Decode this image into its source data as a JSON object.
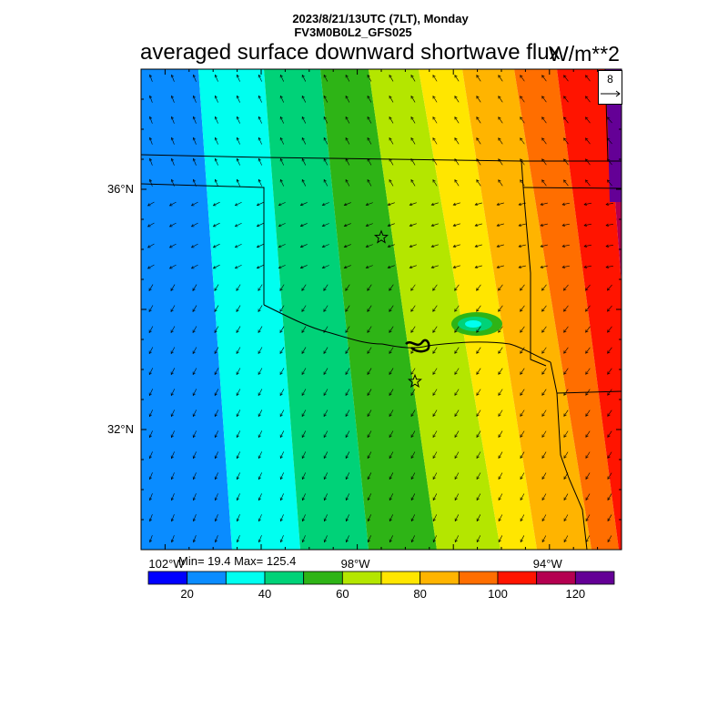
{
  "header": {
    "datetime": "2023/8/21/13UTC (7LT), Monday",
    "model": "FV3M0B0L2_GFS025",
    "title": "averaged surface downward shortwave flux",
    "units": "W/m**2"
  },
  "map": {
    "lon_range": [
      -102.5,
      -92.5
    ],
    "lat_range": [
      30,
      38
    ],
    "lat_ticks": [
      {
        "label": "36°N",
        "value": 36
      },
      {
        "label": "32°N",
        "value": 32
      }
    ],
    "lon_ticks": [
      {
        "label": "102°W",
        "value": -102
      },
      {
        "label": "98°W",
        "value": -98
      },
      {
        "label": "94°W",
        "value": -94
      }
    ],
    "stars": [
      {
        "lon": -97.5,
        "lat": 35.2
      },
      {
        "lon": -96.8,
        "lat": 32.8
      }
    ],
    "field_gradient": "west-to-east increasing",
    "wind_reference": "8",
    "wind_reference_direction": "east"
  },
  "stats": {
    "text": "Min= 19.4 Max= 125.4",
    "min": 19.4,
    "max": 125.4
  },
  "colorbar": {
    "colors": [
      "#0000ff",
      "#0a8cff",
      "#00fff0",
      "#00d278",
      "#2eb416",
      "#b4e600",
      "#ffe600",
      "#ffb400",
      "#ff6e00",
      "#ff1400",
      "#b40050",
      "#640096"
    ],
    "bounds": [
      10,
      20,
      30,
      40,
      50,
      60,
      70,
      80,
      90,
      100,
      110,
      120,
      130
    ],
    "labels": [
      "20",
      "40",
      "60",
      "80",
      "100",
      "120"
    ]
  }
}
